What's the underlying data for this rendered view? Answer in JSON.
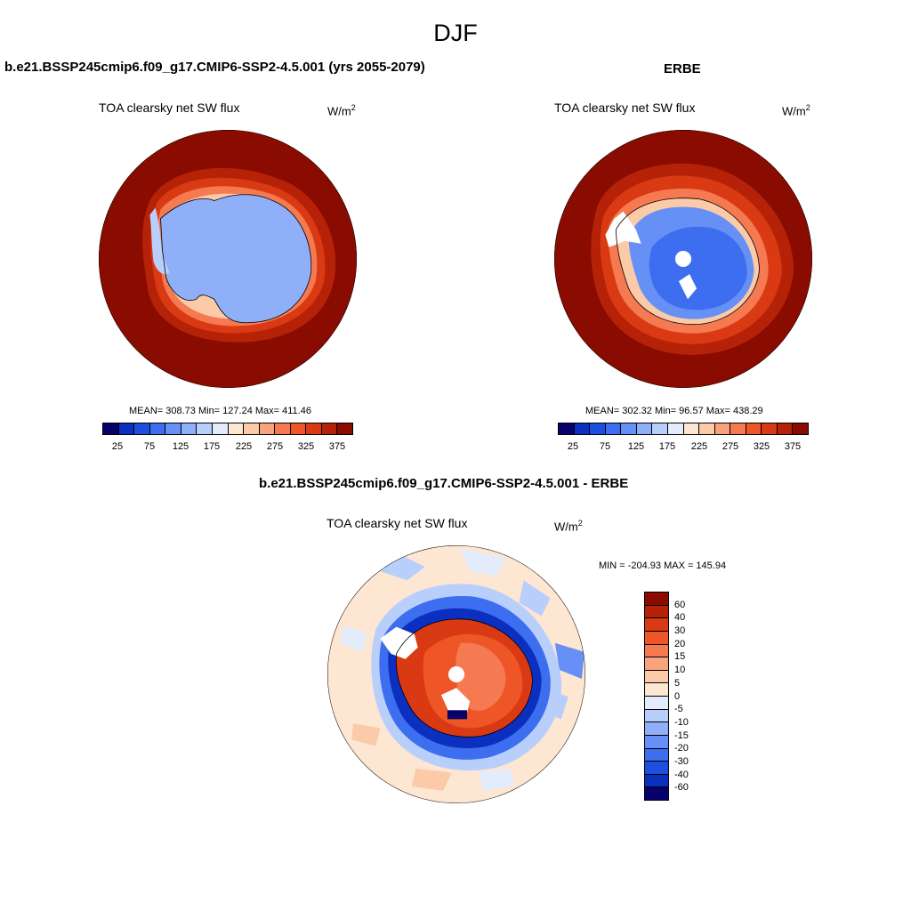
{
  "season": "DJF",
  "left_panel": {
    "case_title": "b.e21.BSSP245cmip6.f09_g17.CMIP6-SSP2-4.5.001 (yrs 2055-2079)",
    "variable": "TOA clearsky net SW flux",
    "units": "W/m",
    "units_exp": "2",
    "stats": "MEAN= 308.73  Min= 127.24  Max= 411.46",
    "tick_labels": [
      "25",
      "75",
      "125",
      "175",
      "225",
      "275",
      "325",
      "375"
    ]
  },
  "right_panel": {
    "case_title": "ERBE",
    "variable": "TOA clearsky net SW flux",
    "units": "W/m",
    "units_exp": "2",
    "stats": "MEAN= 302.32  Min=  96.57  Max= 438.29",
    "tick_labels": [
      "25",
      "75",
      "125",
      "175",
      "225",
      "275",
      "325",
      "375"
    ]
  },
  "diff_panel": {
    "case_title": "b.e21.BSSP245cmip6.f09_g17.CMIP6-SSP2-4.5.001 - ERBE",
    "variable": "TOA clearsky net SW flux",
    "units": "W/m",
    "units_exp": "2",
    "minmax": "MIN = -204.93 MAX = 145.94",
    "tick_labels": [
      "60",
      "40",
      "30",
      "20",
      "15",
      "10",
      "5",
      "0",
      "-5",
      "-10",
      "-15",
      "-20",
      "-30",
      "-40",
      "-60"
    ]
  },
  "colors": {
    "abs_scale": [
      "#08006b",
      "#0b2fbf",
      "#1c4fe0",
      "#3d6ef0",
      "#6690f5",
      "#8fb0f8",
      "#b9cffb",
      "#e2ecfd",
      "#fde6d2",
      "#fbcaa9",
      "#f9a37e",
      "#f57a51",
      "#ee5527",
      "#d93a13",
      "#b52207",
      "#8a0c00"
    ],
    "diff_scale": [
      "#8a0c00",
      "#b52207",
      "#d93a13",
      "#ee5527",
      "#f57a51",
      "#f9a37e",
      "#fbcaa9",
      "#fde6d2",
      "#e2ecfd",
      "#b9cffb",
      "#8fb0f8",
      "#6690f5",
      "#3d6ef0",
      "#1c4fe0",
      "#0b2fbf",
      "#08006b"
    ]
  }
}
